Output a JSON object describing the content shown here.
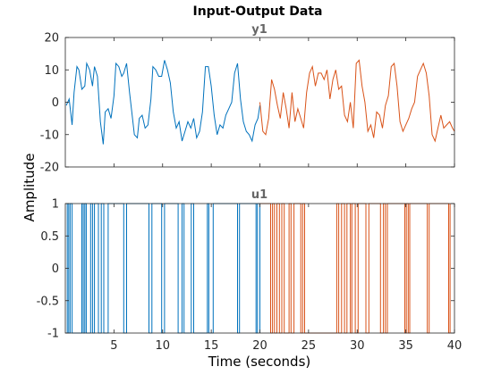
{
  "chart_data": {
    "type": "line",
    "title": "Input-Output Data",
    "xlabel": "Time (seconds)",
    "ylabel": "Amplitude",
    "xlim": [
      0,
      40
    ],
    "x_ticks": [
      5,
      10,
      15,
      20,
      25,
      30,
      35,
      40
    ],
    "x_tick_labels": [
      "5",
      "10",
      "15",
      "20",
      "25",
      "30",
      "35",
      "40"
    ],
    "grid": false,
    "series_colors": [
      "#0072BD",
      "#D95319"
    ],
    "axes": [
      {
        "name": "y1",
        "ylim": [
          -20,
          20
        ],
        "y_ticks": [
          -20,
          -10,
          0,
          10,
          20
        ],
        "y_tick_labels": [
          "-20",
          "-10",
          "0",
          "10",
          "20"
        ],
        "type": "line",
        "series": [
          {
            "x": [
              0.1,
              0.4,
              0.7,
              0.9,
              1.2,
              1.4,
              1.7,
              2.0,
              2.2,
              2.5,
              2.8,
              3.0,
              3.3,
              3.6,
              3.9,
              4.1,
              4.4,
              4.7,
              5.0,
              5.2,
              5.5,
              5.8,
              6.0,
              6.3,
              6.6,
              6.8,
              7.1,
              7.4,
              7.6,
              7.9,
              8.2,
              8.5,
              8.8,
              9.0,
              9.3,
              9.6,
              9.9,
              10.2,
              10.5,
              10.8,
              11.1,
              11.4,
              11.7,
              12.0,
              12.3,
              12.6,
              12.9,
              13.2,
              13.5,
              13.8,
              14.1,
              14.4,
              14.7,
              15.0,
              15.3,
              15.6,
              15.9,
              16.2,
              16.5,
              16.8,
              17.1,
              17.4,
              17.7,
              18.0,
              18.3,
              18.6,
              18.9,
              19.2,
              19.5,
              19.8,
              20.0
            ],
            "y": [
              -1,
              1,
              -7,
              3,
              11,
              10,
              4,
              5,
              12,
              10,
              5,
              11,
              8,
              -6,
              -13,
              -3,
              -2,
              -5,
              2,
              12,
              11,
              8,
              9,
              12,
              3,
              -2,
              -10,
              -11,
              -5,
              -4,
              -8,
              -7,
              1,
              11,
              10,
              8,
              8,
              13,
              10,
              6,
              -3,
              -8,
              -6,
              -12,
              -9,
              -6,
              -8,
              -5,
              -11,
              -9,
              -3,
              11,
              11,
              5,
              -4,
              -10,
              -7,
              -8,
              -4,
              -2,
              0,
              9,
              12,
              1,
              -6,
              -9,
              -10,
              -12,
              -7,
              -5,
              -1
            ]
          },
          {
            "x": [
              20.0,
              20.3,
              20.6,
              20.9,
              21.2,
              21.5,
              21.8,
              22.1,
              22.4,
              22.7,
              23.0,
              23.3,
              23.6,
              23.9,
              24.2,
              24.5,
              24.8,
              25.1,
              25.4,
              25.7,
              26.0,
              26.3,
              26.6,
              26.9,
              27.2,
              27.5,
              27.8,
              28.1,
              28.4,
              28.7,
              29.0,
              29.3,
              29.6,
              29.9,
              30.2,
              30.5,
              30.8,
              31.1,
              31.4,
              31.7,
              32.0,
              32.3,
              32.6,
              32.9,
              33.2,
              33.5,
              33.8,
              34.1,
              34.4,
              34.7,
              35.0,
              35.3,
              35.6,
              35.9,
              36.2,
              36.5,
              36.8,
              37.1,
              37.4,
              37.7,
              38.0,
              38.3,
              38.6,
              38.9,
              39.2,
              39.5,
              39.8,
              40.0
            ],
            "y": [
              0,
              -9,
              -10,
              -5,
              7,
              4,
              -1,
              -5,
              3,
              -2,
              -8,
              3,
              -6,
              -2,
              -5,
              -8,
              3,
              9,
              11,
              5,
              9,
              9,
              7,
              10,
              1,
              7,
              10,
              4,
              5,
              -4,
              -6,
              0,
              -8,
              12,
              13,
              5,
              0,
              -9,
              -7,
              -11,
              -3,
              -4,
              -8,
              -1,
              2,
              11,
              12,
              5,
              -6,
              -9,
              -7,
              -5,
              -2,
              0,
              8,
              10,
              12,
              9,
              2,
              -10,
              -12,
              -8,
              -4,
              -8,
              -7,
              -6,
              -8,
              -9
            ]
          }
        ]
      },
      {
        "name": "u1",
        "ylim": [
          -1,
          1
        ],
        "y_ticks": [
          -1,
          -0.5,
          0,
          0.5,
          1
        ],
        "y_tick_labels": [
          "-1",
          "-0.5",
          "0",
          "0.5",
          "1"
        ],
        "type": "stairs",
        "series": [
          {
            "switch_times": [
              0.1,
              0.2,
              0.35,
              0.5,
              0.7,
              1.7,
              1.85,
              2.0,
              2.15,
              2.6,
              2.8,
              3.0,
              3.4,
              3.7,
              3.95,
              4.4,
              6.0,
              6.3,
              8.6,
              8.9,
              9.9,
              10.2,
              11.6,
              12.0,
              12.2,
              12.95,
              13.2,
              14.6,
              14.75,
              15.2,
              17.7,
              17.9,
              19.6,
              19.75,
              20.0
            ],
            "initial": -1
          },
          {
            "switch_times": [
              20.0,
              21.1,
              21.3,
              21.5,
              21.75,
              22.0,
              22.25,
              22.5,
              23.0,
              23.2,
              23.5,
              24.2,
              24.4,
              24.6,
              27.9,
              28.1,
              28.4,
              28.7,
              28.95,
              29.3,
              29.45,
              29.8,
              30.1,
              30.9,
              31.2,
              32.4,
              32.7,
              32.9,
              33.1,
              34.9,
              35.05,
              35.25,
              35.4,
              37.2,
              37.4,
              39.4,
              39.55
            ],
            "initial": 1
          }
        ]
      }
    ]
  }
}
